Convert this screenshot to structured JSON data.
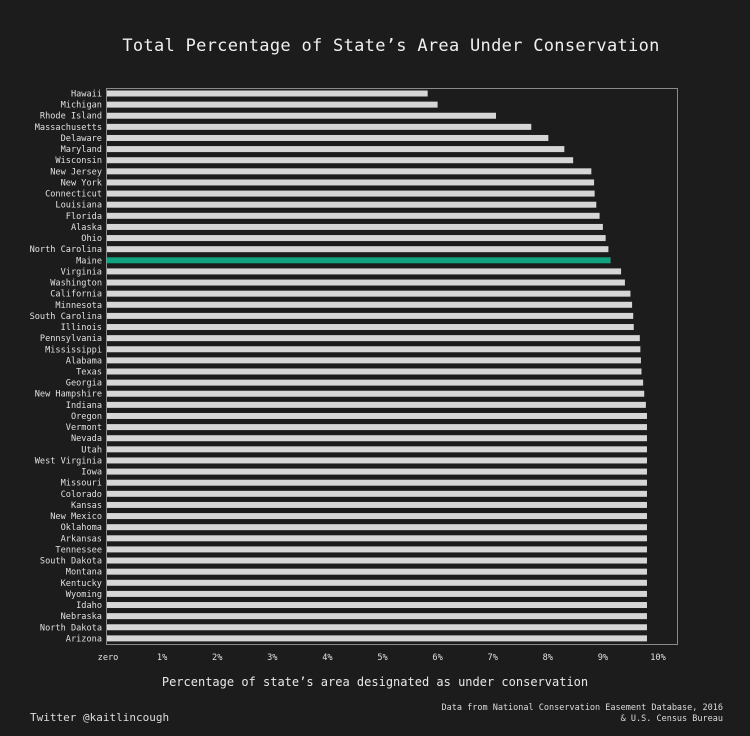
{
  "chart_data": {
    "type": "bar",
    "orientation": "horizontal",
    "title": "Total Percentage of State’s Area Under Conservation",
    "xlabel": "Percentage of state’s area designated as under conservation",
    "ylabel": "",
    "xlim": [
      0,
      10
    ],
    "xticks": [
      {
        "value": 0,
        "label": "zero"
      },
      {
        "value": 1,
        "label": "1%"
      },
      {
        "value": 2,
        "label": "2%"
      },
      {
        "value": 3,
        "label": "3%"
      },
      {
        "value": 4,
        "label": "4%"
      },
      {
        "value": 5,
        "label": "5%"
      },
      {
        "value": 6,
        "label": "6%"
      },
      {
        "value": 7,
        "label": "7%"
      },
      {
        "value": 8,
        "label": "8%"
      },
      {
        "value": 9,
        "label": "9%"
      },
      {
        "value": 10,
        "label": "10%"
      }
    ],
    "grid": false,
    "bar_color": "#d6d6d6",
    "highlight_color": "#0fa37f",
    "highlight": "Maine",
    "categories": [
      "Hawaii",
      "Michigan",
      "Rhode Island",
      "Massachusetts",
      "Delaware",
      "Maryland",
      "Wisconsin",
      "New Jersey",
      "New York",
      "Connecticut",
      "Louisiana",
      "Florida",
      "Alaska",
      "Ohio",
      "North Carolina",
      "Maine",
      "Virginia",
      "Washington",
      "California",
      "Minnesota",
      "South Carolina",
      "Illinois",
      "Pennsylvania",
      "Mississippi",
      "Alabama",
      "Texas",
      "Georgia",
      "New Hampshire",
      "Indiana",
      "Oregon",
      "Vermont",
      "Nevada",
      "Utah",
      "West Virginia",
      "Iowa",
      "Missouri",
      "Colorado",
      "Kansas",
      "New Mexico",
      "Oklahoma",
      "Arkansas",
      "Tennessee",
      "South Dakota",
      "Montana",
      "Kentucky",
      "Wyoming",
      "Idaho",
      "Nebraska",
      "North Dakota",
      "Arizona"
    ],
    "values": [
      5.82,
      6.0,
      7.06,
      7.7,
      8.01,
      8.3,
      8.46,
      8.79,
      8.84,
      8.85,
      8.88,
      8.94,
      9.0,
      9.05,
      9.1,
      9.14,
      9.33,
      9.4,
      9.5,
      9.53,
      9.55,
      9.56,
      9.67,
      9.68,
      9.69,
      9.7,
      9.73,
      9.75,
      9.78,
      9.8,
      9.8,
      9.8,
      9.8,
      9.8,
      9.8,
      9.8,
      9.8,
      9.8,
      9.8,
      9.8,
      9.8,
      9.8,
      9.8,
      9.8,
      9.8,
      9.8,
      9.8,
      9.8,
      9.8,
      9.8
    ]
  },
  "footer": {
    "twitter": "Twitter @kaitlincough",
    "source_line1": "Data from National Conservation Easement Database, 2016",
    "source_line2": "& U.S. Census Bureau"
  }
}
